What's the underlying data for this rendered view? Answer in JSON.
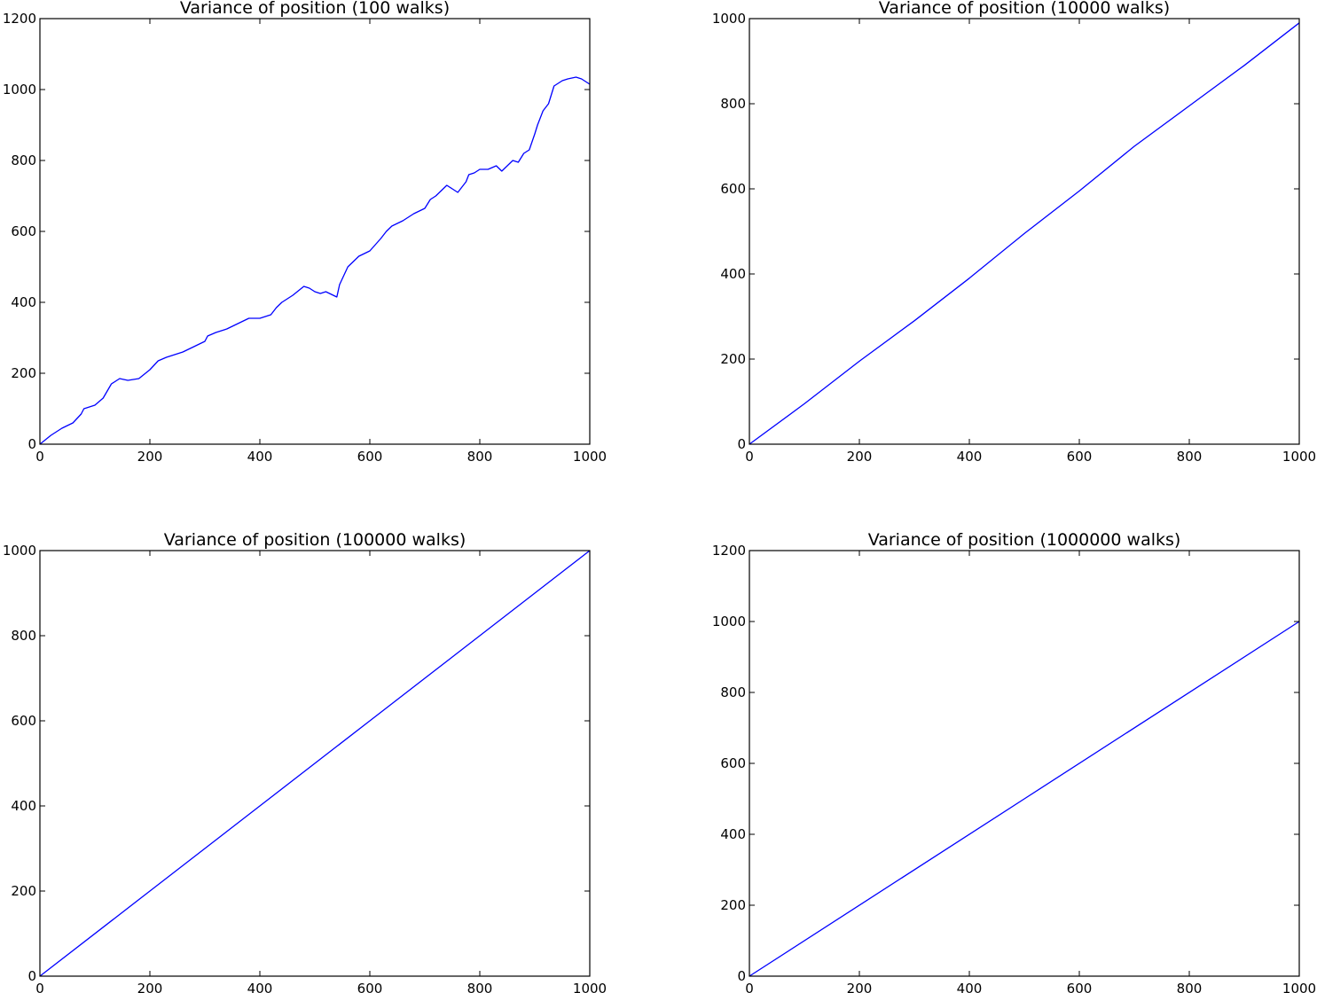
{
  "figure": {
    "background": "#ffffff",
    "line_color": "#0000ff"
  },
  "chart_data": [
    {
      "type": "line",
      "title": "Variance of position (100 walks)",
      "xlabel": "",
      "ylabel": "",
      "xlim": [
        0,
        1000
      ],
      "ylim": [
        0,
        1200
      ],
      "xticks": [
        0,
        200,
        400,
        600,
        800,
        1000
      ],
      "yticks": [
        0,
        200,
        400,
        600,
        800,
        1000,
        1200
      ],
      "grid": false,
      "series": [
        {
          "x": [
            0,
            20,
            40,
            60,
            75,
            80,
            100,
            115,
            130,
            145,
            160,
            180,
            200,
            215,
            230,
            250,
            260,
            280,
            300,
            305,
            320,
            340,
            360,
            380,
            400,
            420,
            430,
            440,
            460,
            480,
            490,
            500,
            510,
            520,
            540,
            545,
            560,
            580,
            600,
            620,
            630,
            640,
            660,
            680,
            700,
            710,
            720,
            740,
            750,
            760,
            775,
            780,
            790,
            800,
            815,
            830,
            840,
            850,
            860,
            870,
            880,
            890,
            900,
            905,
            915,
            925,
            935,
            950,
            960,
            975,
            985,
            1000
          ],
          "y": [
            0,
            25,
            45,
            60,
            85,
            100,
            110,
            130,
            170,
            185,
            180,
            185,
            210,
            235,
            245,
            255,
            260,
            275,
            290,
            305,
            315,
            325,
            340,
            355,
            355,
            365,
            385,
            400,
            420,
            445,
            440,
            430,
            425,
            430,
            415,
            450,
            500,
            530,
            545,
            580,
            600,
            615,
            630,
            650,
            665,
            690,
            700,
            730,
            720,
            710,
            740,
            760,
            765,
            775,
            775,
            785,
            770,
            785,
            800,
            795,
            820,
            830,
            875,
            900,
            940,
            960,
            1010,
            1025,
            1030,
            1035,
            1030,
            1015
          ]
        }
      ]
    },
    {
      "type": "line",
      "title": "Variance of position (10000 walks)",
      "xlabel": "",
      "ylabel": "",
      "xlim": [
        0,
        1000
      ],
      "ylim": [
        0,
        1000
      ],
      "xticks": [
        0,
        200,
        400,
        600,
        800,
        1000
      ],
      "yticks": [
        0,
        200,
        400,
        600,
        800,
        1000
      ],
      "grid": false,
      "series": [
        {
          "x": [
            0,
            100,
            200,
            300,
            400,
            500,
            600,
            700,
            800,
            900,
            1000
          ],
          "y": [
            0,
            95,
            195,
            290,
            390,
            495,
            595,
            700,
            795,
            890,
            990
          ]
        }
      ]
    },
    {
      "type": "line",
      "title": "Variance of position (100000 walks)",
      "xlabel": "",
      "ylabel": "",
      "xlim": [
        0,
        1000
      ],
      "ylim": [
        0,
        1000
      ],
      "xticks": [
        0,
        200,
        400,
        600,
        800,
        1000
      ],
      "yticks": [
        0,
        200,
        400,
        600,
        800,
        1000
      ],
      "grid": false,
      "series": [
        {
          "x": [
            0,
            200,
            400,
            600,
            800,
            1000
          ],
          "y": [
            0,
            200,
            400,
            600,
            800,
            1000
          ]
        }
      ]
    },
    {
      "type": "line",
      "title": "Variance of position (1000000 walks)",
      "xlabel": "",
      "ylabel": "",
      "xlim": [
        0,
        1000
      ],
      "ylim": [
        0,
        1200
      ],
      "xticks": [
        0,
        200,
        400,
        600,
        800,
        1000
      ],
      "yticks": [
        0,
        200,
        400,
        600,
        800,
        1000,
        1200
      ],
      "grid": false,
      "series": [
        {
          "x": [
            0,
            500,
            1000
          ],
          "y": [
            0,
            500,
            1000
          ]
        }
      ]
    }
  ]
}
